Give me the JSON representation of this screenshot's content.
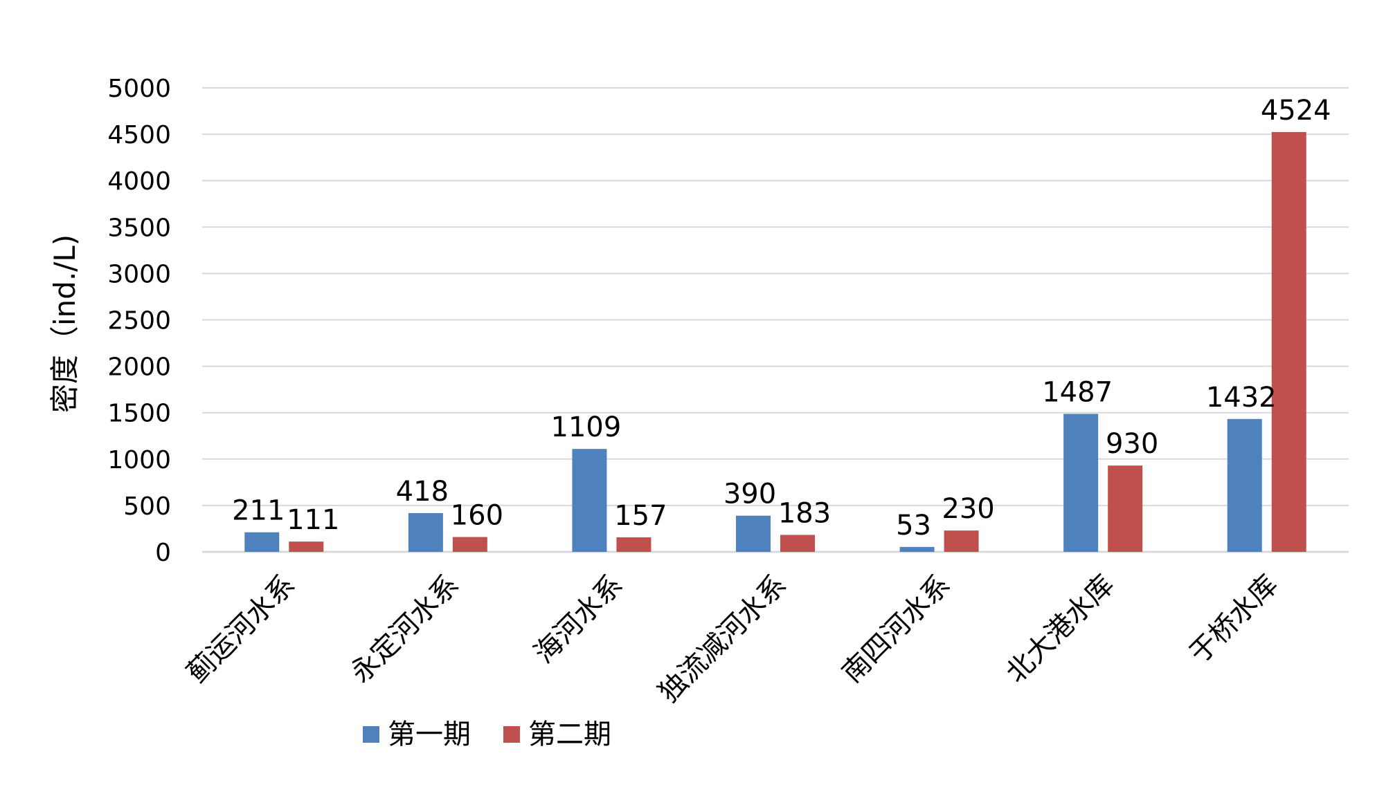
{
  "chart_data": {
    "type": "bar",
    "title": "",
    "xlabel": "",
    "ylabel": "密度（ind./L)",
    "ylim": [
      0,
      5000
    ],
    "yticks": [
      0,
      500,
      1000,
      1500,
      2000,
      2500,
      3000,
      3500,
      4000,
      4500,
      5000
    ],
    "grid": true,
    "legend_position": "bottom",
    "categories": [
      "蓟运河水系",
      "永定河水系",
      "海河水系",
      "独流减河水系",
      "南四河水系",
      "北大港水库",
      "于桥水库"
    ],
    "series": [
      {
        "name": "第一期",
        "color": "#4F81BD",
        "values": [
          211,
          418,
          1109,
          390,
          53,
          1487,
          1432
        ]
      },
      {
        "name": "第二期",
        "color": "#C0504D",
        "values": [
          111,
          160,
          157,
          183,
          230,
          930,
          4524
        ]
      }
    ]
  }
}
